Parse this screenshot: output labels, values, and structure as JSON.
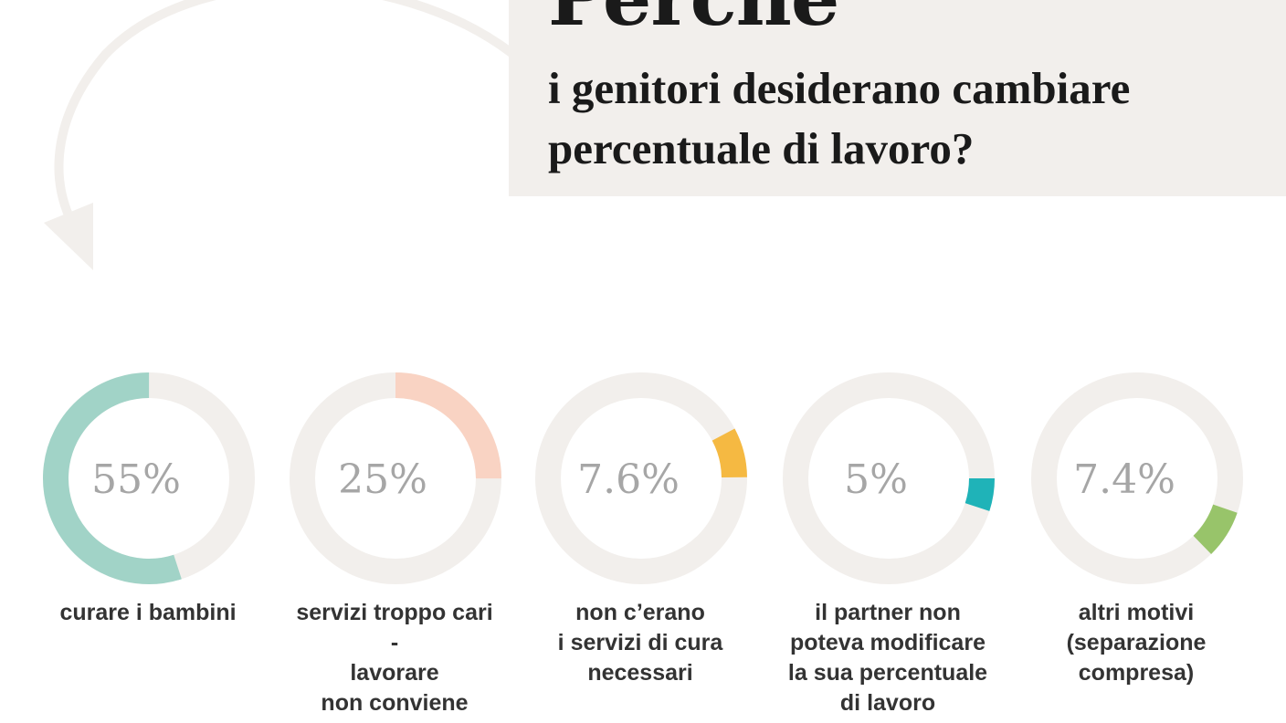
{
  "header": {
    "title_word": "Perché",
    "subtitle_lines": [
      "i genitori desiderano cambiare",
      "percentuale di lavoro?"
    ]
  },
  "colors": {
    "track": "#f2efec",
    "panel": "#f2efec",
    "value_text": "#a6a6a6"
  },
  "chart_data": {
    "type": "pie",
    "variant": "donut-row",
    "categories": [
      "curare i bambini",
      "servizi troppo cari - lavorare non conviene",
      "non c’erano i servizi di cura necessari",
      "il partner non poteva modificare la sua percentuale di lavoro",
      "altri motivi (separazione compresa)"
    ],
    "values": [
      55,
      25,
      7.6,
      5,
      7.4
    ],
    "value_labels": [
      "55%",
      "25%",
      "7.6%",
      "5%",
      "7.4%"
    ],
    "label_lines": [
      [
        "curare i bambini"
      ],
      [
        "servizi troppo cari",
        "-",
        "lavorare",
        "non conviene"
      ],
      [
        "non c’erano",
        "i servizi di cura",
        "necessari"
      ],
      [
        "il partner non",
        "poteva modificare",
        "la sua percentuale",
        "di lavoro"
      ],
      [
        "altri motivi",
        "(separazione",
        "compresa)"
      ]
    ],
    "segment_colors": [
      "#a1d3c7",
      "#f9d3c3",
      "#f5b942",
      "#1fb3b8",
      "#98c46a"
    ],
    "start_angles_deg": [
      0,
      0,
      62,
      90,
      109
    ]
  }
}
